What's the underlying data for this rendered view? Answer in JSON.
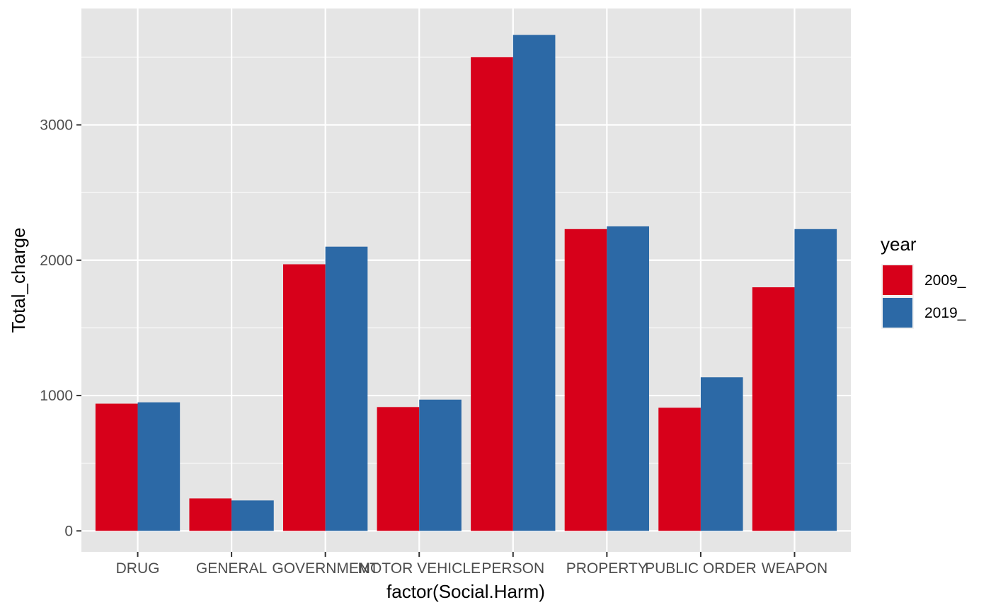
{
  "chart_data": {
    "type": "bar",
    "categories": [
      "DRUG",
      "GENERAL",
      "GOVERNMENT",
      "MOTOR VEHICLE",
      "PERSON",
      "PROPERTY",
      "PUBLIC ORDER",
      "WEAPON"
    ],
    "series": [
      {
        "name": "2009_",
        "color": "#D7001A",
        "values": [
          940,
          240,
          1970,
          915,
          3500,
          2230,
          910,
          1800
        ]
      },
      {
        "name": "2019_",
        "color": "#2C69A6",
        "values": [
          950,
          225,
          2100,
          970,
          3665,
          2250,
          1135,
          2230
        ]
      }
    ],
    "title": "",
    "xlabel": "factor(Social.Harm)",
    "ylabel": "Total_charge",
    "ylim": [
      -155,
      3860
    ],
    "yticks": [
      0,
      1000,
      2000,
      3000
    ],
    "ytick_labels": [
      "0",
      "1000",
      "2000",
      "3000"
    ],
    "grid": true,
    "legend": {
      "title": "year",
      "position": "right"
    },
    "panel_background": "#E5E5E5",
    "grid_color": "#FFFFFF"
  }
}
